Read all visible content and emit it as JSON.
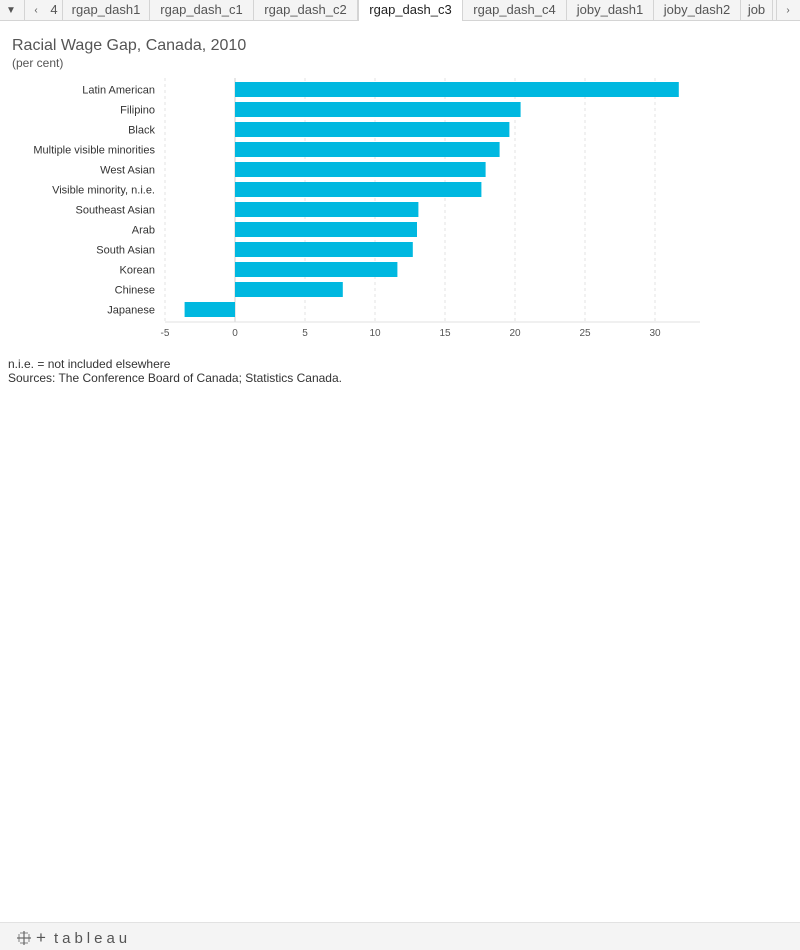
{
  "tabs": {
    "partial_left": "4",
    "items": [
      {
        "label": "rgap_dash1"
      },
      {
        "label": "rgap_dash_c1"
      },
      {
        "label": "rgap_dash_c2"
      },
      {
        "label": "rgap_dash_c3",
        "active": true
      },
      {
        "label": "rgap_dash_c4"
      },
      {
        "label": "joby_dash1"
      },
      {
        "label": "joby_dash2"
      },
      {
        "label": "job"
      }
    ]
  },
  "chart_data": {
    "type": "bar",
    "orientation": "horizontal",
    "title": "Racial Wage Gap, Canada, 2010",
    "subtitle": "(per cent)",
    "categories": [
      "Latin American",
      "Filipino",
      "Black",
      "Multiple visible minorities",
      "West Asian",
      "Visible minority, n.i.e.",
      "Southeast Asian",
      "Arab",
      "South Asian",
      "Korean",
      "Chinese",
      "Japanese"
    ],
    "values": [
      31.7,
      20.4,
      19.6,
      18.9,
      17.9,
      17.6,
      13.1,
      13.0,
      12.7,
      11.6,
      7.7,
      -3.6
    ],
    "xlim": [
      -5,
      33
    ],
    "ticks": [
      -5,
      0,
      5,
      10,
      15,
      20,
      25,
      30
    ],
    "grid": true,
    "bar_color": "#00b8e0"
  },
  "notes": {
    "line1": "n.i.e. = not included elsewhere",
    "line2": "Sources: The Conference Board of Canada; Statistics Canada."
  },
  "footer": {
    "brand": "tableau"
  }
}
